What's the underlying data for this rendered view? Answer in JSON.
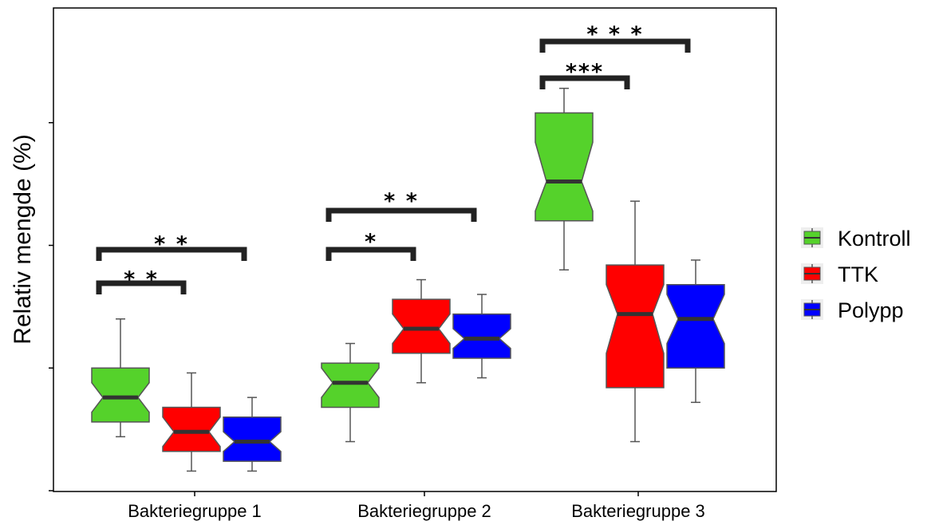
{
  "chart_data": {
    "type": "box",
    "notched": true,
    "title": "",
    "xlabel": "",
    "ylabel": "Relativ mengde (%)",
    "categories": [
      "Bakteriegruppe 1",
      "Bakteriegruppe 2",
      "Bakteriegruppe 3"
    ],
    "ylim": [
      0,
      100
    ],
    "y_tick_labels_shown": false,
    "grid": false,
    "legend_position": "right",
    "series": [
      {
        "name": "Kontroll",
        "color": "#55d22b",
        "boxes": [
          {
            "whisker_low": 11,
            "q1": 14,
            "median": 19,
            "q3": 25,
            "whisker_high": 35,
            "notch_low": 16,
            "notch_high": 22
          },
          {
            "whisker_low": 10,
            "q1": 17,
            "median": 22,
            "q3": 26,
            "whisker_high": 30,
            "notch_low": 19,
            "notch_high": 25
          },
          {
            "whisker_low": 45,
            "q1": 55,
            "median": 63,
            "q3": 77,
            "whisker_high": 82,
            "notch_low": 57,
            "notch_high": 71
          }
        ]
      },
      {
        "name": "TTK",
        "color": "#ff0000",
        "boxes": [
          {
            "whisker_low": 4,
            "q1": 8,
            "median": 12,
            "q3": 17,
            "whisker_high": 24,
            "notch_low": 9,
            "notch_high": 15
          },
          {
            "whisker_low": 22,
            "q1": 28,
            "median": 33,
            "q3": 39,
            "whisker_high": 43,
            "notch_low": 30,
            "notch_high": 36
          },
          {
            "whisker_low": 10,
            "q1": 21,
            "median": 36,
            "q3": 46,
            "whisker_high": 59,
            "notch_low": 28,
            "notch_high": 42
          }
        ]
      },
      {
        "name": "Polypp",
        "color": "#0000ff",
        "boxes": [
          {
            "whisker_low": 4,
            "q1": 6,
            "median": 10,
            "q3": 15,
            "whisker_high": 19,
            "notch_low": 8,
            "notch_high": 12
          },
          {
            "whisker_low": 23,
            "q1": 27,
            "median": 31,
            "q3": 36,
            "whisker_high": 40,
            "notch_low": 29,
            "notch_high": 33
          },
          {
            "whisker_low": 18,
            "q1": 25,
            "median": 35,
            "q3": 42,
            "whisker_high": 47,
            "notch_low": 30,
            "notch_high": 40
          }
        ]
      }
    ],
    "significance": [
      {
        "category": "Bakteriegruppe 1",
        "from": "Kontroll",
        "to": "TTK",
        "label": "* *"
      },
      {
        "category": "Bakteriegruppe 1",
        "from": "Kontroll",
        "to": "Polypp",
        "label": "* *"
      },
      {
        "category": "Bakteriegruppe 2",
        "from": "Kontroll",
        "to": "TTK",
        "label": "*"
      },
      {
        "category": "Bakteriegruppe 2",
        "from": "Kontroll",
        "to": "Polypp",
        "label": "* *"
      },
      {
        "category": "Bakteriegruppe 3",
        "from": "Kontroll",
        "to": "TTK",
        "label": "***"
      },
      {
        "category": "Bakteriegruppe 3",
        "from": "Kontroll",
        "to": "Polypp",
        "label": "* * *"
      }
    ]
  }
}
